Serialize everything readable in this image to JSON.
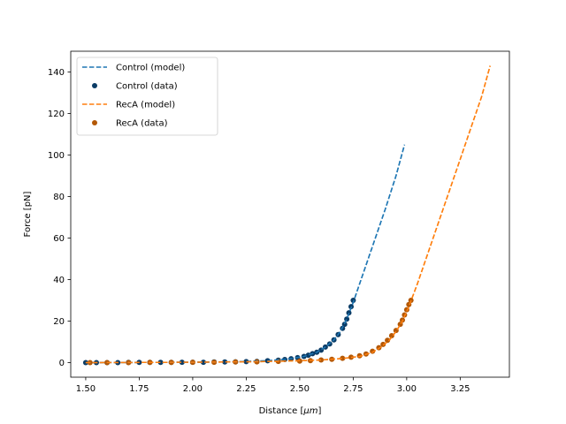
{
  "chart_data": {
    "type": "line",
    "xlabel": "Distance [",
    "xlabel_unit": "μm",
    "xlabel_suffix": "]",
    "ylabel": "Force [pN]",
    "xlim": [
      1.43,
      3.48
    ],
    "ylim": [
      -7,
      150
    ],
    "xticks": [
      1.5,
      1.75,
      2.0,
      2.25,
      2.5,
      2.75,
      3.0,
      3.25
    ],
    "yticks": [
      0,
      20,
      40,
      60,
      80,
      100,
      120,
      140
    ],
    "grid": false,
    "legend_position": "top-left",
    "series": [
      {
        "name": "Control (model)",
        "style": "dashed",
        "color": "#1f77b4",
        "x": [
          1.5,
          1.75,
          2.0,
          2.2,
          2.35,
          2.45,
          2.52,
          2.58,
          2.62,
          2.66,
          2.69,
          2.72,
          2.75,
          2.8,
          2.85,
          2.9,
          2.95,
          2.99
        ],
        "y": [
          0,
          0.1,
          0.2,
          0.4,
          0.9,
          1.8,
          3.0,
          5.0,
          7.5,
          11.0,
          15.0,
          21.0,
          29.0,
          44.0,
          59.0,
          74.0,
          90.0,
          105.0
        ]
      },
      {
        "name": "Control (data)",
        "style": "points",
        "color": "#0b3c66",
        "x": [
          1.5,
          1.55,
          1.6,
          1.65,
          1.7,
          1.75,
          1.8,
          1.85,
          1.9,
          1.95,
          2.0,
          2.05,
          2.1,
          2.15,
          2.2,
          2.25,
          2.3,
          2.35,
          2.4,
          2.43,
          2.46,
          2.49,
          2.52,
          2.54,
          2.56,
          2.58,
          2.6,
          2.62,
          2.64,
          2.66,
          2.68,
          2.7,
          2.71,
          2.72,
          2.73,
          2.74,
          2.75
        ],
        "y": [
          0,
          0,
          0,
          0,
          0.1,
          0.1,
          0.1,
          0.1,
          0.1,
          0.2,
          0.2,
          0.2,
          0.3,
          0.3,
          0.4,
          0.5,
          0.6,
          0.9,
          1.2,
          1.5,
          1.9,
          2.4,
          3.0,
          3.6,
          4.3,
          5.0,
          6.0,
          7.5,
          9.0,
          11.0,
          13.5,
          16.5,
          18.5,
          21.0,
          24.0,
          27.0,
          30.0
        ]
      },
      {
        "name": "RecA (model)",
        "style": "dashed",
        "color": "#ff7f0e",
        "x": [
          1.5,
          2.0,
          2.3,
          2.5,
          2.6,
          2.7,
          2.78,
          2.84,
          2.88,
          2.92,
          2.95,
          2.98,
          3.01,
          3.05,
          3.1,
          3.15,
          3.2,
          3.25,
          3.3,
          3.35,
          3.39
        ],
        "y": [
          0,
          0.2,
          0.5,
          0.9,
          1.3,
          2.0,
          3.0,
          5.0,
          7.5,
          11.0,
          15.0,
          20.0,
          27.0,
          38.0,
          53.0,
          68.0,
          83.0,
          98.0,
          113.0,
          128.0,
          143.0
        ]
      },
      {
        "name": "RecA (data)",
        "style": "points",
        "color": "#b35806",
        "x": [
          1.52,
          1.6,
          1.7,
          1.8,
          1.9,
          2.0,
          2.1,
          2.2,
          2.3,
          2.4,
          2.5,
          2.55,
          2.6,
          2.65,
          2.7,
          2.74,
          2.78,
          2.81,
          2.84,
          2.87,
          2.89,
          2.91,
          2.93,
          2.95,
          2.97,
          2.98,
          2.99,
          3.0,
          3.01,
          3.02
        ],
        "y": [
          0,
          0,
          0,
          0.1,
          0.1,
          0.2,
          0.2,
          0.3,
          0.4,
          0.6,
          0.8,
          1.0,
          1.3,
          1.6,
          2.1,
          2.6,
          3.3,
          4.2,
          5.5,
          7.2,
          8.8,
          10.8,
          13.0,
          15.5,
          18.5,
          20.5,
          23.0,
          25.5,
          28.0,
          30.0
        ]
      }
    ]
  }
}
